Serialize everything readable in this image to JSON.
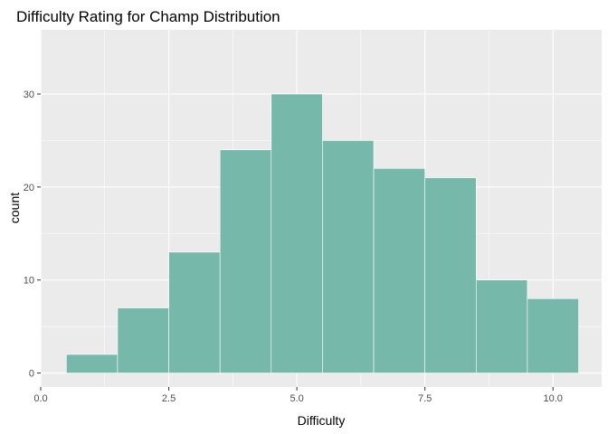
{
  "chart_data": {
    "type": "bar",
    "subtype": "histogram",
    "title": "Difficulty Rating for Champ Distribution",
    "xlabel": "Difficulty",
    "ylabel": "count",
    "bins": [
      {
        "x_start": 0.5,
        "x_end": 1.5,
        "count": 2
      },
      {
        "x_start": 1.5,
        "x_end": 2.5,
        "count": 7
      },
      {
        "x_start": 2.5,
        "x_end": 3.5,
        "count": 13
      },
      {
        "x_start": 3.5,
        "x_end": 4.5,
        "count": 24
      },
      {
        "x_start": 4.5,
        "x_end": 5.5,
        "count": 30
      },
      {
        "x_start": 5.5,
        "x_end": 6.5,
        "count": 25
      },
      {
        "x_start": 6.5,
        "x_end": 7.5,
        "count": 22
      },
      {
        "x_start": 7.5,
        "x_end": 8.5,
        "count": 21
      },
      {
        "x_start": 8.5,
        "x_end": 9.5,
        "count": 10
      },
      {
        "x_start": 9.5,
        "x_end": 10.5,
        "count": 8
      }
    ],
    "xlim": [
      0,
      10.95
    ],
    "ylim": [
      -1.5,
      36.9
    ],
    "x_ticks": [
      "0.0",
      "2.5",
      "5.0",
      "7.5",
      "10.0"
    ],
    "y_ticks": [
      "0",
      "10",
      "20",
      "30"
    ],
    "bar_color": "#76b8aa",
    "bar_border_color": "#ffffff",
    "panel_background": "#ebebeb",
    "grid_color": "#ffffff",
    "grid": true,
    "legend": "none"
  }
}
